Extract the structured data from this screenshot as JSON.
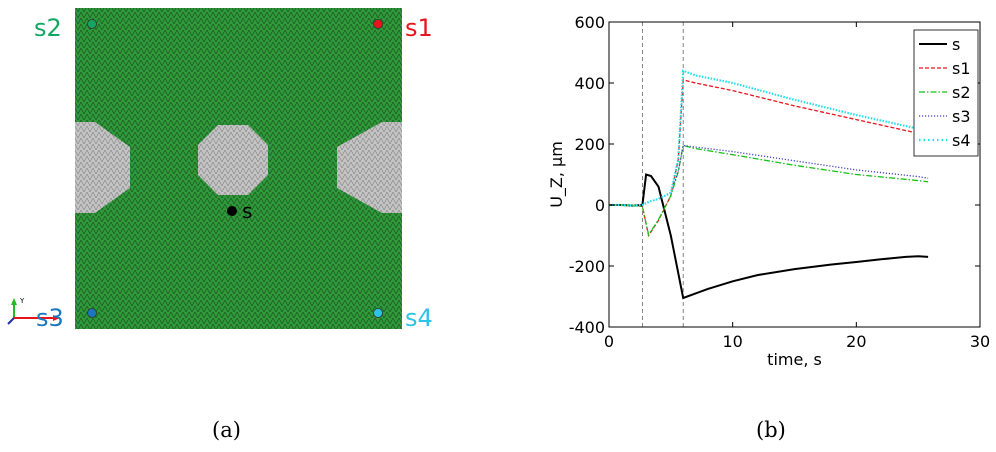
{
  "panel_a": {
    "caption": "(a)",
    "sensors": [
      {
        "label": "s1",
        "color": "#e8141c"
      },
      {
        "label": "s2",
        "color": "#13a561"
      },
      {
        "label": "s3",
        "color": "#1a77bd"
      },
      {
        "label": "s4",
        "color": "#2bc3e6"
      }
    ],
    "source_label": "s",
    "axis_y_label": "Y",
    "colors": {
      "plate": "#2f9a3a",
      "holes": "#bdbdbd",
      "source": "#000000"
    }
  },
  "panel_b": {
    "caption": "(b)"
  },
  "chart_data": {
    "type": "line",
    "title": "",
    "xlabel": "time, s",
    "ylabel": "U_Z, μm",
    "xlim": [
      0,
      30
    ],
    "ylim": [
      -400,
      600
    ],
    "xticks": [
      0,
      10,
      20,
      30
    ],
    "yticks": [
      -400,
      -200,
      0,
      200,
      400,
      600
    ],
    "grid": false,
    "legend_position": "top-right",
    "vlines": [
      2.7,
      6.0
    ],
    "series": [
      {
        "name": "s",
        "color": "#000000",
        "style": "solid",
        "x": [
          0,
          1,
          2,
          2.7,
          3.0,
          3.4,
          4.0,
          5.0,
          6.0,
          7,
          8,
          10,
          12,
          15,
          18,
          20,
          22,
          24,
          25,
          25.8
        ],
        "y": [
          0,
          0,
          -2,
          0,
          100,
          95,
          60,
          -100,
          -305,
          -290,
          -275,
          -250,
          -230,
          -210,
          -195,
          -187,
          -178,
          -170,
          -168,
          -170
        ]
      },
      {
        "name": "s1",
        "color": "#e8141c",
        "style": "dashed",
        "x": [
          0,
          1,
          2,
          2.7,
          3.2,
          4.0,
          5.0,
          5.6,
          6.0,
          7,
          10,
          15,
          20,
          25,
          25.8
        ],
        "y": [
          0,
          0,
          -2,
          -5,
          -100,
          -50,
          30,
          150,
          410,
          400,
          375,
          325,
          280,
          235,
          228
        ]
      },
      {
        "name": "s2",
        "color": "#1bbf1b",
        "style": "dashdot",
        "x": [
          0,
          1,
          2,
          2.7,
          3.2,
          4.0,
          5.0,
          5.6,
          6.0,
          7,
          10,
          15,
          20,
          25,
          25.8
        ],
        "y": [
          0,
          0,
          -2,
          -5,
          -98,
          -48,
          30,
          110,
          195,
          185,
          165,
          130,
          100,
          80,
          76
        ]
      },
      {
        "name": "s3",
        "color": "#4040c0",
        "style": "dotted",
        "x": [
          0,
          1,
          2,
          2.7,
          3.2,
          4.0,
          5.0,
          5.6,
          6.0,
          7,
          10,
          15,
          20,
          25,
          25.8
        ],
        "y": [
          0,
          0,
          -2,
          0,
          10,
          20,
          40,
          110,
          195,
          190,
          175,
          145,
          115,
          93,
          88
        ]
      },
      {
        "name": "s4",
        "color": "#22e0e8",
        "style": "dots",
        "x": [
          0,
          1,
          2,
          2.7,
          3.2,
          4.0,
          5.0,
          5.6,
          6.0,
          7,
          10,
          15,
          20,
          25,
          25.8
        ],
        "y": [
          0,
          0,
          -2,
          0,
          10,
          20,
          40,
          150,
          440,
          425,
          400,
          345,
          295,
          250,
          238
        ]
      }
    ]
  }
}
